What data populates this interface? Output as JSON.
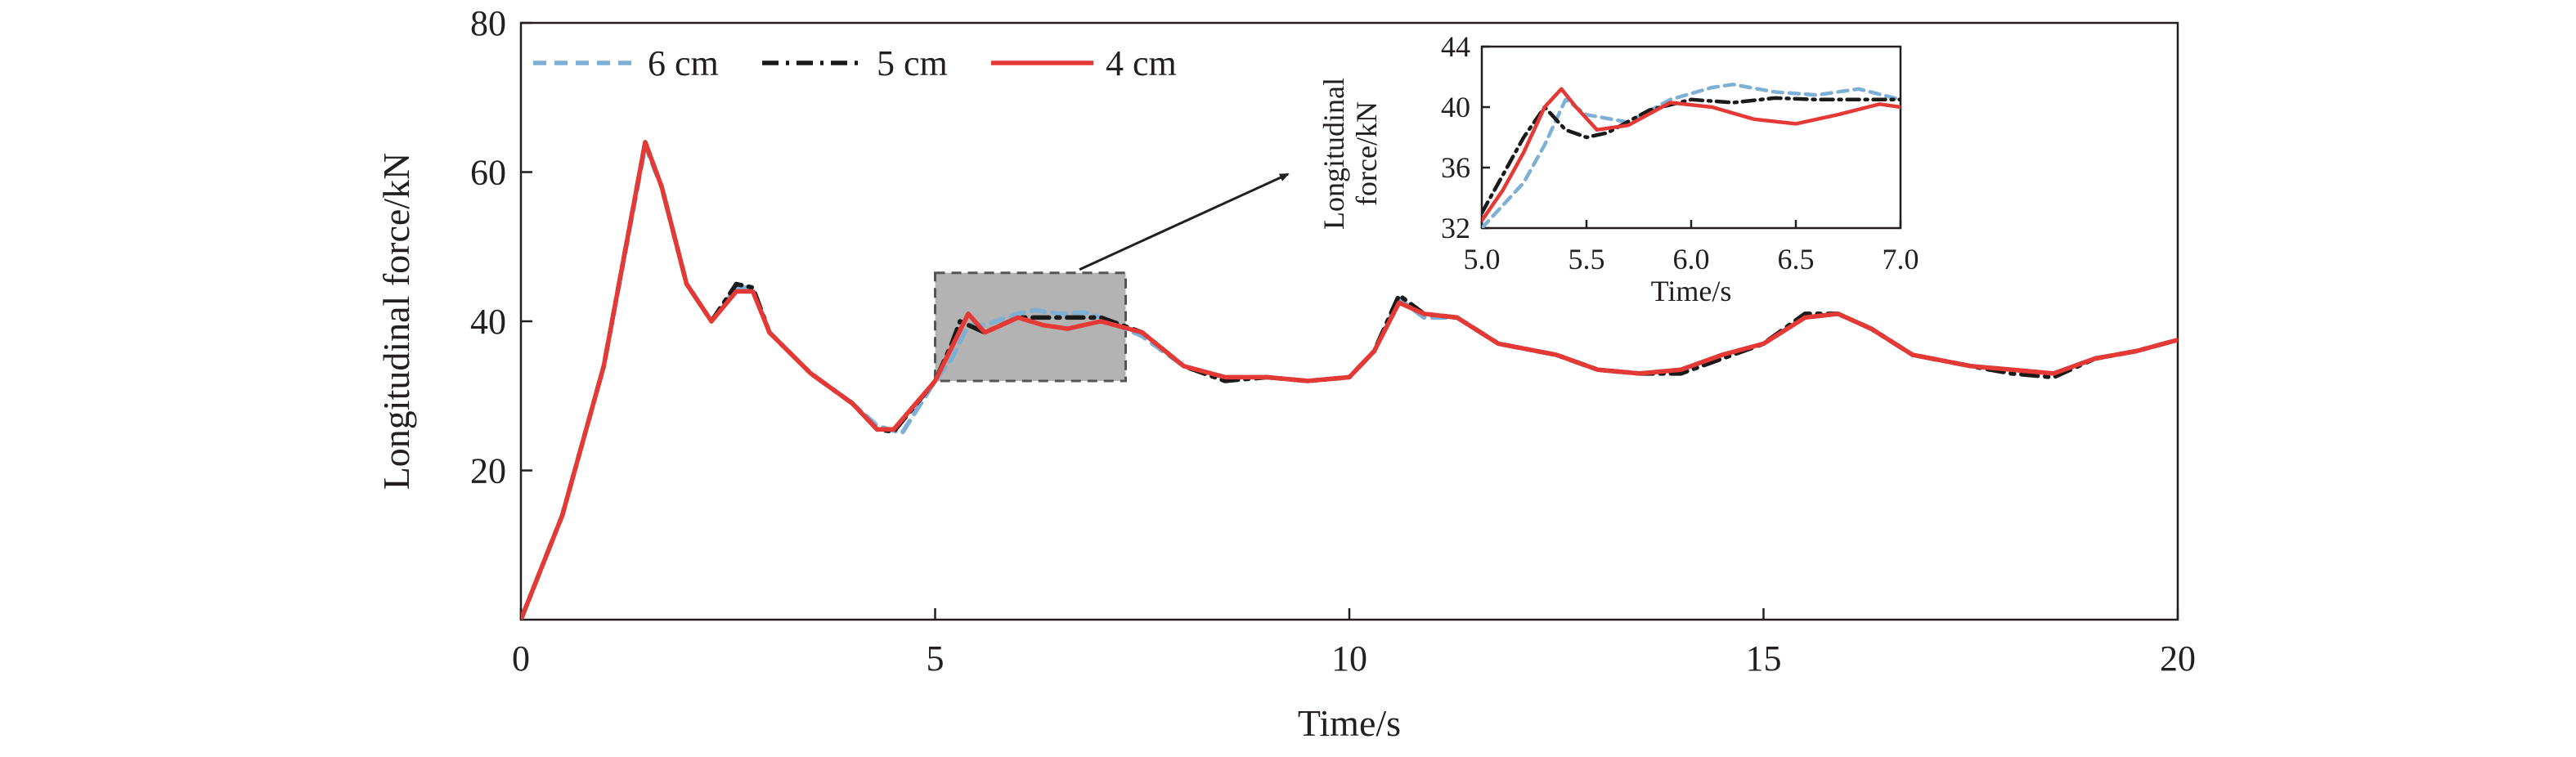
{
  "chart_data": {
    "type": "line",
    "main": {
      "xlabel": "Time/s",
      "ylabel": "Longitudinal force/kN",
      "xlim": [
        0,
        20
      ],
      "ylim": [
        0,
        80
      ],
      "xticks": [
        "0",
        "5",
        "10",
        "15",
        "20"
      ],
      "yticks": [
        "20",
        "40",
        "60",
        "80"
      ],
      "grid": false,
      "legend_position": "top-left",
      "highlight_box": {
        "x_range": [
          5.0,
          7.3
        ],
        "y_range": [
          32,
          46.5
        ]
      },
      "series": [
        {
          "name": "6 cm",
          "color": "#7eb0d5",
          "style": "dashed",
          "points": [
            [
              0,
              0
            ],
            [
              0.5,
              14
            ],
            [
              1.0,
              34
            ],
            [
              1.5,
              63.5
            ],
            [
              1.7,
              58
            ],
            [
              2.0,
              45
            ],
            [
              2.3,
              40
            ],
            [
              2.6,
              44.5
            ],
            [
              2.8,
              44.5
            ],
            [
              3.0,
              38.5
            ],
            [
              3.5,
              33
            ],
            [
              4.0,
              29
            ],
            [
              4.3,
              26
            ],
            [
              4.6,
              25
            ],
            [
              5.0,
              32
            ],
            [
              5.2,
              35
            ],
            [
              5.4,
              39.5
            ],
            [
              5.6,
              39.5
            ],
            [
              6.0,
              41
            ],
            [
              6.2,
              41.5
            ],
            [
              6.5,
              41
            ],
            [
              6.8,
              41.2
            ],
            [
              7.0,
              40.5
            ],
            [
              7.5,
              38
            ],
            [
              8.0,
              34
            ],
            [
              8.5,
              32.5
            ],
            [
              9.0,
              32.5
            ],
            [
              9.5,
              32
            ],
            [
              10.0,
              32.5
            ],
            [
              10.3,
              36
            ],
            [
              10.6,
              43
            ],
            [
              10.9,
              40.5
            ],
            [
              11.3,
              40.5
            ],
            [
              11.8,
              37
            ],
            [
              12.5,
              35.5
            ],
            [
              13.0,
              33.5
            ],
            [
              13.5,
              33
            ],
            [
              14.0,
              33.5
            ],
            [
              14.5,
              35.5
            ],
            [
              15.0,
              37
            ],
            [
              15.5,
              40.5
            ],
            [
              15.9,
              41
            ],
            [
              16.3,
              39
            ],
            [
              16.8,
              35.5
            ],
            [
              17.5,
              34
            ],
            [
              18.0,
              33.5
            ],
            [
              18.5,
              33
            ],
            [
              19.0,
              35
            ],
            [
              19.5,
              36
            ],
            [
              20.0,
              37.5
            ]
          ]
        },
        {
          "name": "5 cm",
          "color": "#1a1a1a",
          "style": "dash-dot",
          "points": [
            [
              0,
              0
            ],
            [
              0.5,
              14
            ],
            [
              1.0,
              34
            ],
            [
              1.5,
              64
            ],
            [
              1.7,
              58
            ],
            [
              2.0,
              45
            ],
            [
              2.3,
              40
            ],
            [
              2.6,
              45
            ],
            [
              2.8,
              44.5
            ],
            [
              3.0,
              38.5
            ],
            [
              3.5,
              33
            ],
            [
              4.0,
              29
            ],
            [
              4.3,
              25.5
            ],
            [
              4.5,
              25.2
            ],
            [
              5.0,
              32
            ],
            [
              5.2,
              37
            ],
            [
              5.3,
              40
            ],
            [
              5.4,
              39.5
            ],
            [
              5.6,
              38.5
            ],
            [
              6.0,
              40.5
            ],
            [
              6.5,
              40.5
            ],
            [
              7.0,
              40.5
            ],
            [
              7.5,
              38.5
            ],
            [
              8.0,
              34
            ],
            [
              8.5,
              32
            ],
            [
              9.0,
              32.5
            ],
            [
              9.5,
              32
            ],
            [
              10.0,
              32.5
            ],
            [
              10.3,
              36
            ],
            [
              10.6,
              43.5
            ],
            [
              10.9,
              41
            ],
            [
              11.3,
              40.5
            ],
            [
              11.8,
              37
            ],
            [
              12.5,
              35.5
            ],
            [
              13.0,
              33.5
            ],
            [
              13.5,
              33
            ],
            [
              14.0,
              33
            ],
            [
              14.5,
              35
            ],
            [
              15.0,
              37
            ],
            [
              15.5,
              41
            ],
            [
              15.9,
              41
            ],
            [
              16.3,
              39
            ],
            [
              16.8,
              35.5
            ],
            [
              17.5,
              34
            ],
            [
              18.0,
              33
            ],
            [
              18.5,
              32.5
            ],
            [
              19.0,
              35
            ],
            [
              19.5,
              36
            ],
            [
              20.0,
              37.5
            ]
          ]
        },
        {
          "name": "4 cm",
          "color": "#e53935",
          "style": "solid",
          "points": [
            [
              0,
              0
            ],
            [
              0.5,
              14
            ],
            [
              1.0,
              34
            ],
            [
              1.5,
              64
            ],
            [
              1.7,
              58
            ],
            [
              2.0,
              45
            ],
            [
              2.3,
              40
            ],
            [
              2.6,
              44
            ],
            [
              2.8,
              44
            ],
            [
              3.0,
              38.5
            ],
            [
              3.5,
              33
            ],
            [
              4.0,
              29
            ],
            [
              4.3,
              25.5
            ],
            [
              4.5,
              25.5
            ],
            [
              5.0,
              32
            ],
            [
              5.2,
              36.5
            ],
            [
              5.4,
              41
            ],
            [
              5.6,
              38.5
            ],
            [
              6.0,
              40.5
            ],
            [
              6.3,
              39.5
            ],
            [
              6.6,
              39
            ],
            [
              7.0,
              40
            ],
            [
              7.5,
              38.5
            ],
            [
              8.0,
              34
            ],
            [
              8.5,
              32.5
            ],
            [
              9.0,
              32.5
            ],
            [
              9.5,
              32
            ],
            [
              10.0,
              32.5
            ],
            [
              10.3,
              36
            ],
            [
              10.6,
              42.5
            ],
            [
              10.9,
              41
            ],
            [
              11.3,
              40.5
            ],
            [
              11.8,
              37
            ],
            [
              12.5,
              35.5
            ],
            [
              13.0,
              33.5
            ],
            [
              13.5,
              33
            ],
            [
              14.0,
              33.5
            ],
            [
              14.5,
              35.5
            ],
            [
              15.0,
              37
            ],
            [
              15.5,
              40.5
            ],
            [
              15.9,
              41
            ],
            [
              16.3,
              39
            ],
            [
              16.8,
              35.5
            ],
            [
              17.5,
              34
            ],
            [
              18.0,
              33.5
            ],
            [
              18.5,
              33
            ],
            [
              19.0,
              35
            ],
            [
              19.5,
              36
            ],
            [
              20.0,
              37.5
            ]
          ]
        }
      ]
    },
    "inset": {
      "type": "line",
      "xlabel": "Time/s",
      "ylabel_line1": "Longitudinal",
      "ylabel_line2": "force/kN",
      "xlim": [
        5.0,
        7.0
      ],
      "ylim": [
        32,
        44
      ],
      "xticks": [
        "5.0",
        "5.5",
        "6.0",
        "6.5",
        "7.0"
      ],
      "yticks": [
        "32",
        "36",
        "40",
        "44"
      ],
      "series": [
        {
          "name": "6 cm",
          "color": "#7eb0d5",
          "style": "dashed",
          "points": [
            [
              5.0,
              32
            ],
            [
              5.1,
              33.5
            ],
            [
              5.2,
              35
            ],
            [
              5.3,
              37.5
            ],
            [
              5.4,
              40.5
            ],
            [
              5.5,
              39.5
            ],
            [
              5.7,
              39
            ],
            [
              5.9,
              40.5
            ],
            [
              6.1,
              41.3
            ],
            [
              6.2,
              41.5
            ],
            [
              6.4,
              41
            ],
            [
              6.6,
              40.8
            ],
            [
              6.8,
              41.2
            ],
            [
              7.0,
              40.5
            ]
          ]
        },
        {
          "name": "5 cm",
          "color": "#1a1a1a",
          "style": "dash-dot",
          "points": [
            [
              5.0,
              33
            ],
            [
              5.1,
              35.5
            ],
            [
              5.2,
              38
            ],
            [
              5.3,
              40
            ],
            [
              5.4,
              38.5
            ],
            [
              5.5,
              38
            ],
            [
              5.6,
              38.3
            ],
            [
              5.8,
              39.8
            ],
            [
              6.0,
              40.5
            ],
            [
              6.2,
              40.3
            ],
            [
              6.4,
              40.6
            ],
            [
              6.6,
              40.5
            ],
            [
              6.8,
              40.5
            ],
            [
              7.0,
              40.5
            ]
          ]
        },
        {
          "name": "4 cm",
          "color": "#e53935",
          "style": "solid",
          "points": [
            [
              5.0,
              32.5
            ],
            [
              5.1,
              34.5
            ],
            [
              5.2,
              37
            ],
            [
              5.3,
              40
            ],
            [
              5.38,
              41.2
            ],
            [
              5.45,
              40
            ],
            [
              5.55,
              38.5
            ],
            [
              5.7,
              38.8
            ],
            [
              5.9,
              40.3
            ],
            [
              6.1,
              40
            ],
            [
              6.3,
              39.2
            ],
            [
              6.5,
              38.9
            ],
            [
              6.7,
              39.5
            ],
            [
              6.9,
              40.2
            ],
            [
              7.0,
              40
            ]
          ]
        }
      ]
    }
  }
}
